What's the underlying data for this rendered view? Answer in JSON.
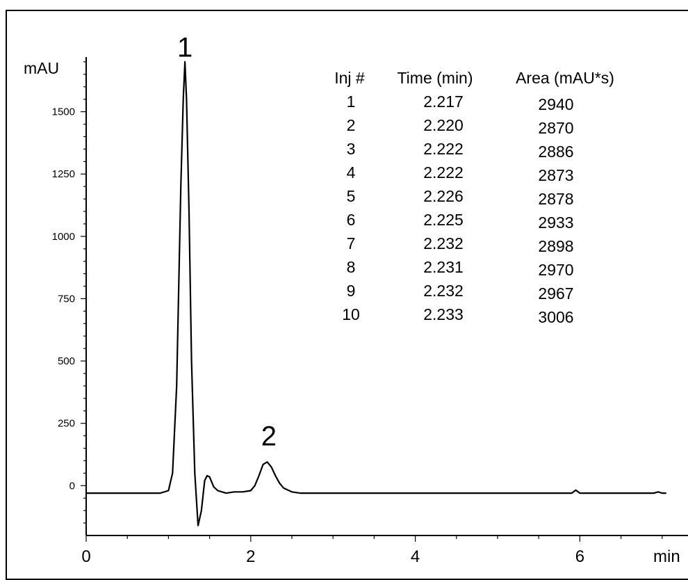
{
  "chart_data": {
    "type": "line",
    "ylabel": "mAU",
    "xlabel": "min",
    "xlim": [
      0,
      7.5
    ],
    "ylim": [
      -200,
      1750
    ],
    "x_ticks": [
      0,
      2,
      4,
      6
    ],
    "y_ticks": [
      0,
      250,
      500,
      750,
      1000,
      1250,
      1500
    ],
    "peak_labels": [
      {
        "label": "1",
        "x": 1.2,
        "y": 1710
      },
      {
        "label": "2",
        "x": 2.22,
        "y": 150
      }
    ],
    "series": [
      {
        "x": [
          0,
          0.5,
          0.9,
          1.0,
          1.05,
          1.1,
          1.15,
          1.18,
          1.2,
          1.22,
          1.25,
          1.28,
          1.32,
          1.36,
          1.4,
          1.44,
          1.47,
          1.5,
          1.55,
          1.6,
          1.7,
          1.8,
          1.9,
          2.0,
          2.05,
          2.1,
          2.15,
          2.2,
          2.25,
          2.3,
          2.35,
          2.4,
          2.5,
          2.6,
          3.0,
          4.0,
          5.0,
          5.9,
          5.95,
          6.0,
          6.5,
          6.9,
          6.95,
          7.0,
          7.05
        ],
        "y": [
          -30,
          -30,
          -30,
          -20,
          50,
          400,
          1200,
          1550,
          1700,
          1550,
          1100,
          500,
          50,
          -160,
          -100,
          20,
          40,
          35,
          -5,
          -20,
          -30,
          -25,
          -25,
          -20,
          0,
          40,
          85,
          95,
          75,
          40,
          10,
          -10,
          -25,
          -30,
          -30,
          -30,
          -30,
          -30,
          -18,
          -30,
          -30,
          -30,
          -25,
          -30,
          -30
        ]
      }
    ],
    "table": {
      "headers": [
        "Inj #",
        "Time (min)",
        "Area (mAU*s)"
      ],
      "rows": [
        [
          "1",
          "2.217",
          "2940"
        ],
        [
          "2",
          "2.220",
          "2870"
        ],
        [
          "3",
          "2.222",
          "2886"
        ],
        [
          "4",
          "2.222",
          "2873"
        ],
        [
          "5",
          "2.226",
          "2878"
        ],
        [
          "6",
          "2.225",
          "2933"
        ],
        [
          "7",
          "2.232",
          "2898"
        ],
        [
          "8",
          "2.231",
          "2970"
        ],
        [
          "9",
          "2.232",
          "2967"
        ],
        [
          "10",
          "2.233",
          "3006"
        ]
      ]
    },
    "grid": false,
    "line_color": "#000000"
  }
}
